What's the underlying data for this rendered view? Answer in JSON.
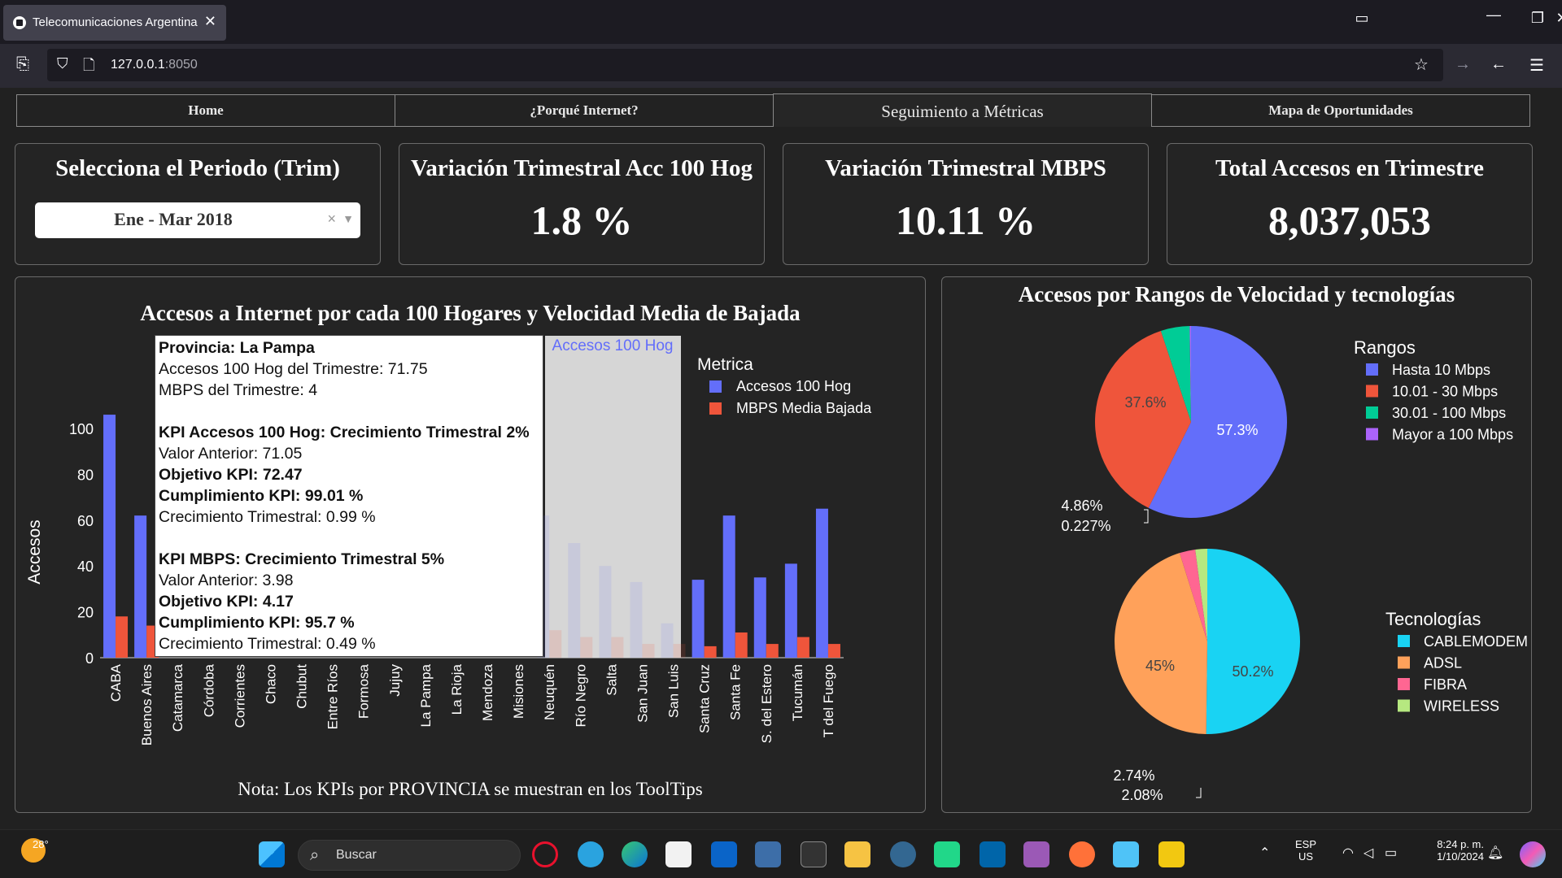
{
  "browser": {
    "tab_title": "Telecomunicaciones Argentina",
    "url_host": "127.0.0.1",
    "url_port": ":8050"
  },
  "nav_tabs": [
    "Home",
    "¿Porqué Internet?",
    "Seguimiento a Métricas",
    "Mapa de Oportunidades"
  ],
  "active_tab": "Seguimiento a Métricas",
  "cards": {
    "period": {
      "title": "Selecciona el Periodo (Trim)",
      "value": "Ene - Mar 2018"
    },
    "acc": {
      "title": "Variación Trimestral Acc 100 Hog",
      "value": "1.8 %"
    },
    "mbps": {
      "title": "Variación Trimestral MBPS",
      "value": "10.11 %"
    },
    "total": {
      "title": "Total Accesos en Trimestre",
      "value": "8,037,053"
    }
  },
  "tooltip": {
    "provincia": "Provincia: La Pampa",
    "acc_trim": "Accesos 100 Hog del Trimestre: 71.75",
    "mbps_trim": "MBPS del Trimestre: 4",
    "kpi_acc_title": "KPI Accesos 100 Hog: Crecimiento Trimestral 2%",
    "kpi_acc_prev": "Valor Anterior: 71.05",
    "kpi_acc_obj": "Objetivo KPI: 72.47",
    "kpi_acc_cump": "Cumplimiento KPI: 99.01 %",
    "kpi_acc_crec": "Crecimiento Trimestral: 0.99 %",
    "kpi_mbps_title": "KPI MBPS: Crecimiento Trimestral 5%",
    "kpi_mbps_prev": "Valor Anterior: 3.98",
    "kpi_mbps_obj": "Objetivo KPI: 4.17",
    "kpi_mbps_cump": "Cumplimiento KPI: 95.7 %",
    "kpi_mbps_crec": "Crecimiento Trimestral: 0.49 %",
    "hover_label": "Accesos 100 Hog"
  },
  "note": "Nota: Los KPIs por PROVINCIA se muestran en los ToolTips",
  "colors": {
    "acc": "#636efa",
    "mbps": "#ef553b",
    "pie_green": "#00cc96",
    "pie_purple": "#ab63fa",
    "cable": "#19d3f3",
    "adsl": "#ffa15a",
    "fibra": "#ff6692",
    "wireless": "#b6e880"
  },
  "chart_data": [
    {
      "type": "bar",
      "title": "Accesos a Internet por cada 100 Hogares y Velocidad Media de Bajada",
      "ylabel": "Accesos",
      "ylim": [
        0,
        110
      ],
      "yticks": [
        0,
        20,
        40,
        60,
        80,
        100
      ],
      "legend_title": "Metrica",
      "categories": [
        "CABA",
        "Buenos Aires",
        "Catamarca",
        "Córdoba",
        "Corrientes",
        "Chaco",
        "Chubut",
        "Entre Ríos",
        "Formosa",
        "Jujuy",
        "La Pampa",
        "La Rioja",
        "Mendoza",
        "Misiones",
        "Neuquén",
        "Río Negro",
        "Salta",
        "San Juan",
        "San Luis",
        "Santa Cruz",
        "Santa Fe",
        "S. del Estero",
        "Tucumán",
        "T del Fuego"
      ],
      "series": [
        {
          "name": "Accesos 100 Hog",
          "values": [
            106,
            62,
            null,
            null,
            null,
            null,
            null,
            null,
            null,
            null,
            71.75,
            null,
            null,
            null,
            62,
            50,
            40,
            33,
            15,
            34,
            62,
            35,
            41,
            65
          ]
        },
        {
          "name": "MBPS Media Bajada",
          "values": [
            18,
            14,
            null,
            null,
            null,
            null,
            null,
            null,
            null,
            null,
            4,
            null,
            null,
            null,
            12,
            9,
            9,
            6,
            6,
            5,
            11,
            6,
            9,
            6
          ]
        }
      ]
    },
    {
      "type": "pie",
      "title": "Accesos por Rangos de Velocidad y tecnologías",
      "legend_title": "Rangos",
      "labels": [
        "Hasta 10 Mbps",
        "10.01 - 30 Mbps",
        "30.01 - 100 Mbps",
        "Mayor a 100 Mbps"
      ],
      "values": [
        57.3,
        37.6,
        4.86,
        0.227
      ],
      "text": [
        "57.3%",
        "37.6%",
        "4.86%",
        "0.227%"
      ]
    },
    {
      "type": "pie",
      "legend_title": "Tecnologías",
      "labels": [
        "CABLEMODEM",
        "ADSL",
        "FIBRA",
        "WIRELESS"
      ],
      "values": [
        50.2,
        45,
        2.74,
        2.08
      ],
      "text": [
        "50.2%",
        "45%",
        "2.74%",
        "2.08%"
      ]
    }
  ],
  "taskbar": {
    "weather": "28°",
    "search_label": "Buscar",
    "lang1": "ESP",
    "lang2": "US",
    "time": "8:24 p. m.",
    "date": "1/10/2024"
  }
}
